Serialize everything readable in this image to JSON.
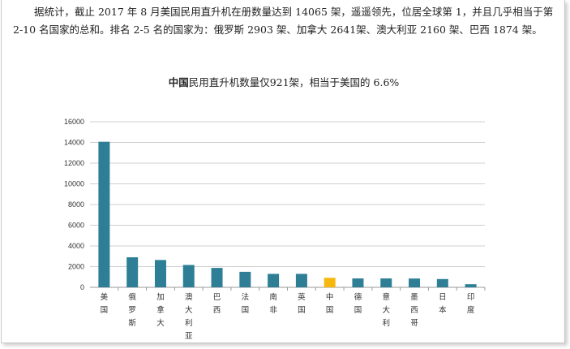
{
  "paragraph": "据统计，截止 2017 年 8 月美国民用直升机在册数量达到 14065 架，遥遥领先，位居全球第 1，并且几乎相当于第 2-10 名国家的总和。排名 2-5 名的国家为：俄罗斯 2903 架、加拿大 2641架、澳大利亚 2160 架、巴西 1874 架。",
  "chart_title": {
    "bold_part": "中国",
    "rest": "民用直升机数量仅921架，相当于美国的 6.6%"
  },
  "colors": {
    "bar": "#2e7f96",
    "highlight": "#f6b80e",
    "grid": "#cfcfcf",
    "axis": "#999999"
  },
  "chart_data": {
    "type": "bar",
    "title": "中国民用直升机数量仅921架，相当于美国的 6.6%",
    "categories": [
      "美国",
      "俄罗斯",
      "加拿大",
      "澳大利亚",
      "巴西",
      "法国",
      "南非",
      "英国",
      "中国",
      "德国",
      "意大利",
      "墨西哥",
      "日本",
      "印度"
    ],
    "values": [
      14065,
      2903,
      2641,
      2160,
      1874,
      1500,
      1300,
      1300,
      921,
      860,
      860,
      850,
      800,
      300
    ],
    "highlight_category": "中国",
    "ylim": [
      0,
      16000
    ],
    "yticks": [
      "0",
      "2000",
      "4000",
      "6000",
      "8000",
      "10000",
      "12000",
      "14000",
      "16000"
    ],
    "grid": true,
    "legend": false
  }
}
